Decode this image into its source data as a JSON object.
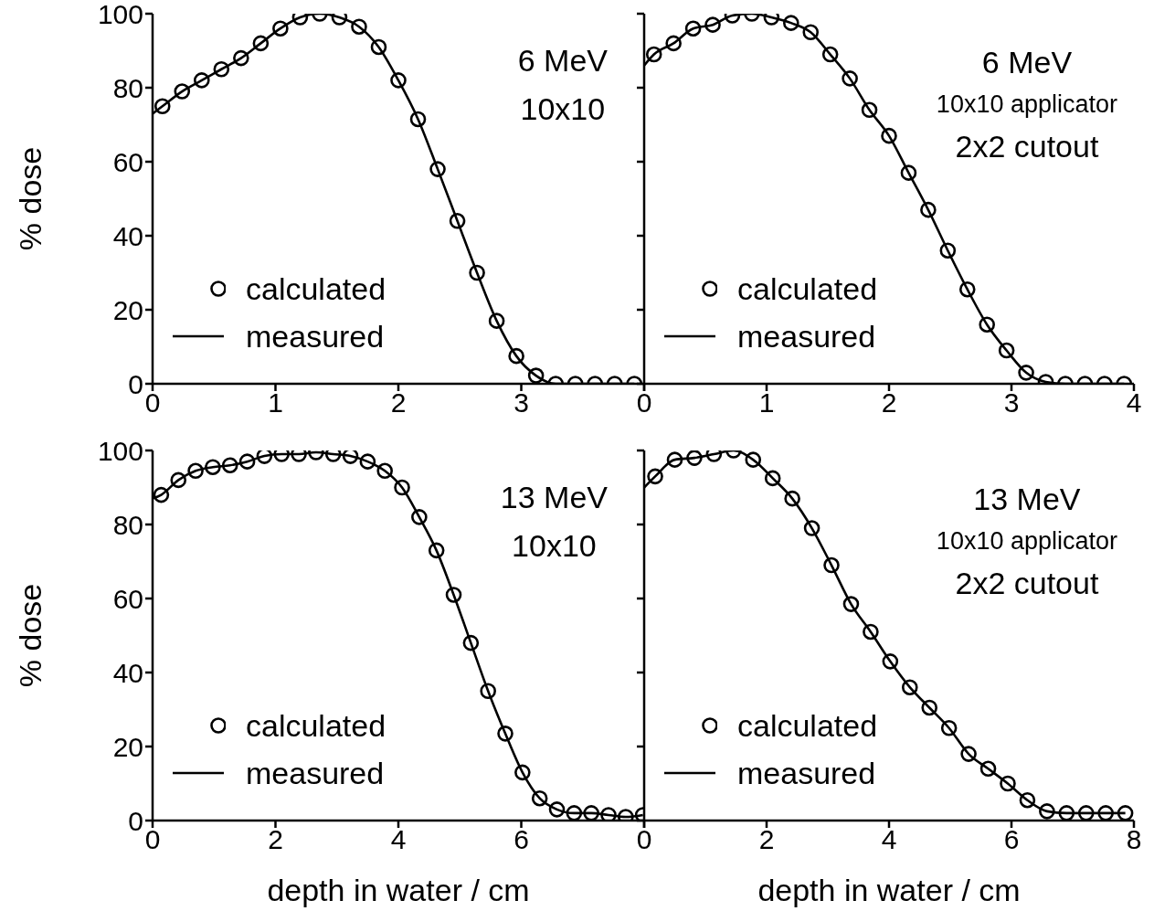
{
  "chart_data": [
    {
      "type": "line",
      "ylabel": "% dose",
      "xlim": [
        0,
        4
      ],
      "ylim": [
        0,
        100
      ],
      "xticks": [
        0,
        1,
        2,
        3,
        {
          "value": 4,
          "label": null
        }
      ],
      "yticks": [
        0,
        20,
        40,
        60,
        80,
        100
      ],
      "grid": false,
      "legend": "bottom left",
      "annotations": [
        "6 MeV",
        "10x10"
      ],
      "series": [
        {
          "name": "calculated",
          "type": "scatter",
          "marker": "circle",
          "color": "#000000",
          "x": [
            0.08,
            0.24,
            0.4,
            0.56,
            0.72,
            0.88,
            1.04,
            1.2,
            1.36,
            1.52,
            1.68,
            1.84,
            2,
            2.16,
            2.32,
            2.48,
            2.64,
            2.8,
            2.96,
            3.12,
            3.28,
            3.44,
            3.6,
            3.76,
            3.92
          ],
          "values": [
            75,
            79,
            82,
            85,
            88,
            92,
            96,
            99,
            100,
            99,
            96.5,
            91,
            82,
            71.5,
            58,
            44,
            30,
            17,
            7.5,
            2.2,
            0,
            0,
            0,
            0,
            0
          ]
        },
        {
          "name": "measured",
          "type": "line",
          "marker": "none",
          "line_style": "solid",
          "color": "#000000",
          "x": [
            0,
            0.08,
            0.24,
            0.4,
            0.56,
            0.72,
            0.88,
            1.04,
            1.2,
            1.36,
            1.52,
            1.68,
            1.84,
            2,
            2.16,
            2.32,
            2.48,
            2.64,
            2.8,
            2.96,
            3.12,
            3.28,
            3.44,
            3.6,
            3.76,
            3.92
          ],
          "values": [
            73,
            75,
            79,
            82,
            85,
            88,
            92,
            96,
            99,
            100,
            99,
            96.5,
            91,
            82,
            71.5,
            58,
            44,
            30,
            17,
            7.5,
            2.2,
            0,
            0,
            0,
            0,
            0
          ]
        }
      ]
    },
    {
      "type": "line",
      "tick_labels": "x",
      "xlim": [
        0,
        4
      ],
      "ylim": [
        0,
        100
      ],
      "xticks": [
        0,
        1,
        2,
        3,
        4
      ],
      "yticks": [
        0,
        20,
        40,
        60,
        80,
        100
      ],
      "grid": false,
      "legend": "bottom left",
      "annotations": [
        "6 MeV",
        "10x10 applicator",
        "2x2 cutout"
      ],
      "series": [
        {
          "name": "calculated",
          "type": "scatter",
          "marker": "circle",
          "color": "#000000",
          "x": [
            0.08,
            0.24,
            0.4,
            0.56,
            0.72,
            0.88,
            1.04,
            1.2,
            1.36,
            1.52,
            1.68,
            1.84,
            2,
            2.16,
            2.32,
            2.48,
            2.64,
            2.8,
            2.96,
            3.12,
            3.28,
            3.44,
            3.6,
            3.76,
            3.92
          ],
          "values": [
            89,
            92,
            96,
            97,
            99.5,
            100,
            99,
            97.5,
            95,
            89,
            82.5,
            74,
            67,
            57,
            47,
            36,
            25.5,
            16,
            9,
            3,
            0.5,
            0,
            0,
            0,
            0
          ]
        },
        {
          "name": "measured",
          "type": "line",
          "marker": "none",
          "line_style": "solid",
          "color": "#000000",
          "x": [
            0,
            0.08,
            0.24,
            0.4,
            0.56,
            0.72,
            0.88,
            1.04,
            1.2,
            1.36,
            1.52,
            1.68,
            1.84,
            2,
            2.16,
            2.32,
            2.48,
            2.64,
            2.8,
            2.96,
            3.12,
            3.28,
            3.44,
            3.6,
            3.76,
            3.92
          ],
          "values": [
            86,
            89,
            92,
            96,
            97,
            99.5,
            100,
            99,
            97.5,
            95,
            89,
            82.5,
            74,
            67,
            57,
            47,
            36,
            25.5,
            16,
            9,
            3,
            0.5,
            0,
            0,
            0,
            0
          ]
        }
      ]
    },
    {
      "type": "line",
      "xlabel": "depth in water / cm",
      "ylabel": "% dose",
      "xlim": [
        0,
        8
      ],
      "ylim": [
        0,
        100
      ],
      "xticks": [
        0,
        2,
        4,
        6,
        {
          "value": 8,
          "label": null
        }
      ],
      "yticks": [
        0,
        20,
        40,
        60,
        80,
        100
      ],
      "grid": false,
      "legend": "bottom left",
      "annotations": [
        "13 MeV",
        "10x10"
      ],
      "series": [
        {
          "name": "calculated",
          "type": "scatter",
          "marker": "circle",
          "color": "#000000",
          "x": [
            0.14,
            0.42,
            0.7,
            0.98,
            1.26,
            1.54,
            1.82,
            2.1,
            2.38,
            2.66,
            2.94,
            3.22,
            3.5,
            3.78,
            4.06,
            4.34,
            4.62,
            4.9,
            5.18,
            5.46,
            5.74,
            6.02,
            6.3,
            6.58,
            6.86,
            7.14,
            7.42,
            7.7,
            7.98
          ],
          "values": [
            88,
            92,
            94.5,
            95.5,
            96,
            97,
            98.5,
            99,
            99,
            99.5,
            99,
            98.5,
            97,
            94.5,
            90,
            82,
            73,
            61,
            48,
            35,
            23.5,
            13,
            6,
            3,
            2,
            2,
            1.5,
            1,
            1.5
          ]
        },
        {
          "name": "measured",
          "type": "line",
          "marker": "none",
          "line_style": "solid",
          "color": "#000000",
          "x": [
            0,
            0.14,
            0.42,
            0.7,
            0.98,
            1.26,
            1.54,
            1.82,
            2.1,
            2.38,
            2.66,
            2.94,
            3.22,
            3.5,
            3.78,
            4.06,
            4.34,
            4.62,
            4.9,
            5.18,
            5.46,
            5.74,
            6.02,
            6.3,
            6.58,
            6.86,
            7.14,
            7.42,
            7.7,
            7.98
          ],
          "values": [
            87,
            88,
            92,
            94.5,
            95.5,
            96,
            97,
            98.5,
            99,
            99,
            99.5,
            99,
            98.5,
            97,
            94.5,
            90,
            82,
            73,
            61,
            48,
            35,
            23.5,
            13,
            6,
            3,
            2,
            2,
            1.5,
            1,
            1.5
          ]
        }
      ]
    },
    {
      "type": "line",
      "xlabel": "depth in water / cm",
      "tick_labels": "x",
      "xlim": [
        0,
        8
      ],
      "ylim": [
        0,
        100
      ],
      "xticks": [
        0,
        2,
        4,
        6,
        8
      ],
      "yticks": [
        0,
        20,
        40,
        60,
        80,
        100
      ],
      "grid": false,
      "legend": "bottom left",
      "annotations": [
        "13 MeV",
        "10x10 applicator",
        "2x2 cutout"
      ],
      "series": [
        {
          "name": "calculated",
          "type": "scatter",
          "marker": "circle",
          "color": "#000000",
          "x": [
            0.18,
            0.5,
            0.82,
            1.14,
            1.46,
            1.78,
            2.1,
            2.42,
            2.74,
            3.06,
            3.38,
            3.7,
            4.02,
            4.34,
            4.66,
            4.98,
            5.3,
            5.62,
            5.94,
            6.26,
            6.58,
            6.9,
            7.22,
            7.54,
            7.86
          ],
          "values": [
            93,
            97.5,
            98,
            99,
            100,
            97.5,
            92.5,
            87,
            79,
            69,
            58.5,
            51,
            43,
            36,
            30.5,
            25,
            18,
            14,
            10,
            5.5,
            2.5,
            2,
            2,
            2,
            2
          ]
        },
        {
          "name": "measured",
          "type": "line",
          "marker": "none",
          "line_style": "solid",
          "color": "#000000",
          "x": [
            0,
            0.18,
            0.5,
            0.82,
            1.14,
            1.46,
            1.78,
            2.1,
            2.42,
            2.74,
            3.06,
            3.38,
            3.7,
            4.02,
            4.34,
            4.66,
            4.98,
            5.3,
            5.62,
            5.94,
            6.26,
            6.58,
            6.9,
            7.22,
            7.54,
            7.86
          ],
          "values": [
            90,
            93,
            97.5,
            98,
            99,
            100,
            97.5,
            92.5,
            87,
            79,
            69,
            58.5,
            51,
            43,
            36,
            30.5,
            25,
            18,
            14,
            10,
            5.5,
            2.5,
            2,
            2,
            2,
            2
          ]
        }
      ]
    }
  ]
}
